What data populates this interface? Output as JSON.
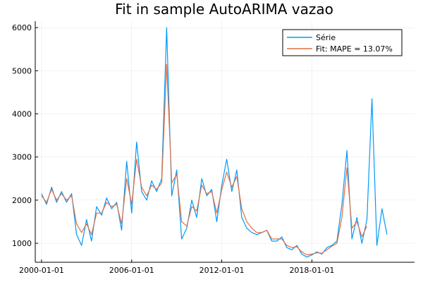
{
  "chart_data": {
    "type": "line",
    "title": "Fit in sample AutoARIMA vazao",
    "xlabel": "",
    "ylabel": "",
    "x_ticks": [
      "2000-01-01",
      "2006-01-01",
      "2012-01-01",
      "2018-01-01"
    ],
    "y_ticks": [
      1000,
      2000,
      3000,
      4000,
      5000,
      6000
    ],
    "ylim": [
      560,
      6150
    ],
    "xlim": [
      "1999-08-01",
      "2024-11-01"
    ],
    "grid": true,
    "legend_position": "top-right",
    "series": [
      {
        "name": "Série",
        "color": "#009AFA",
        "points": [
          [
            "2000-01-01",
            2150
          ],
          [
            "2000-05-01",
            1900
          ],
          [
            "2000-09-01",
            2300
          ],
          [
            "2001-01-01",
            1950
          ],
          [
            "2001-05-01",
            2200
          ],
          [
            "2001-09-01",
            1950
          ],
          [
            "2002-01-01",
            2150
          ],
          [
            "2002-05-01",
            1200
          ],
          [
            "2002-09-01",
            950
          ],
          [
            "2003-01-01",
            1550
          ],
          [
            "2003-05-01",
            1050
          ],
          [
            "2003-09-01",
            1850
          ],
          [
            "2004-01-01",
            1650
          ],
          [
            "2004-05-01",
            2050
          ],
          [
            "2004-09-01",
            1800
          ],
          [
            "2005-01-01",
            1950
          ],
          [
            "2005-05-01",
            1300
          ],
          [
            "2005-09-01",
            2900
          ],
          [
            "2006-01-01",
            1700
          ],
          [
            "2006-05-01",
            3350
          ],
          [
            "2006-09-01",
            2200
          ],
          [
            "2007-01-01",
            2000
          ],
          [
            "2007-05-01",
            2450
          ],
          [
            "2007-09-01",
            2200
          ],
          [
            "2008-01-01",
            2500
          ],
          [
            "2008-05-01",
            6000
          ],
          [
            "2008-09-01",
            2100
          ],
          [
            "2009-01-01",
            2700
          ],
          [
            "2009-05-01",
            1100
          ],
          [
            "2009-09-01",
            1350
          ],
          [
            "2010-01-01",
            2000
          ],
          [
            "2010-05-01",
            1600
          ],
          [
            "2010-09-01",
            2500
          ],
          [
            "2011-01-01",
            2100
          ],
          [
            "2011-05-01",
            2250
          ],
          [
            "2011-09-01",
            1500
          ],
          [
            "2012-01-01",
            2350
          ],
          [
            "2012-05-01",
            2950
          ],
          [
            "2012-09-01",
            2200
          ],
          [
            "2013-01-01",
            2700
          ],
          [
            "2013-05-01",
            1600
          ],
          [
            "2013-09-01",
            1350
          ],
          [
            "2014-01-01",
            1250
          ],
          [
            "2014-05-01",
            1200
          ],
          [
            "2014-09-01",
            1250
          ],
          [
            "2015-01-01",
            1300
          ],
          [
            "2015-05-01",
            1050
          ],
          [
            "2015-09-01",
            1050
          ],
          [
            "2016-01-01",
            1150
          ],
          [
            "2016-05-01",
            900
          ],
          [
            "2016-09-01",
            850
          ],
          [
            "2017-01-01",
            950
          ],
          [
            "2017-05-01",
            750
          ],
          [
            "2017-09-01",
            680
          ],
          [
            "2018-01-01",
            730
          ],
          [
            "2018-05-01",
            800
          ],
          [
            "2018-09-01",
            750
          ],
          [
            "2019-01-01",
            900
          ],
          [
            "2019-05-01",
            950
          ],
          [
            "2019-09-01",
            1050
          ],
          [
            "2020-01-01",
            1900
          ],
          [
            "2020-05-01",
            3150
          ],
          [
            "2020-09-01",
            1100
          ],
          [
            "2021-01-01",
            1600
          ],
          [
            "2021-05-01",
            1000
          ],
          [
            "2021-09-01",
            1550
          ],
          [
            "2022-01-01",
            4350
          ],
          [
            "2022-05-01",
            950
          ],
          [
            "2022-09-01",
            1800
          ],
          [
            "2023-01-01",
            1200
          ]
        ]
      },
      {
        "name": "Fit: MAPE = 13.07%",
        "color": "#E26F46",
        "points": [
          [
            "2000-01-01",
            2100
          ],
          [
            "2000-05-01",
            1950
          ],
          [
            "2000-09-01",
            2250
          ],
          [
            "2001-01-01",
            2000
          ],
          [
            "2001-05-01",
            2150
          ],
          [
            "2001-09-01",
            2000
          ],
          [
            "2002-01-01",
            2100
          ],
          [
            "2002-05-01",
            1450
          ],
          [
            "2002-09-01",
            1250
          ],
          [
            "2003-01-01",
            1450
          ],
          [
            "2003-05-01",
            1200
          ],
          [
            "2003-09-01",
            1700
          ],
          [
            "2004-01-01",
            1700
          ],
          [
            "2004-05-01",
            1950
          ],
          [
            "2004-09-01",
            1850
          ],
          [
            "2005-01-01",
            1900
          ],
          [
            "2005-05-01",
            1450
          ],
          [
            "2005-09-01",
            2500
          ],
          [
            "2006-01-01",
            1900
          ],
          [
            "2006-05-01",
            2950
          ],
          [
            "2006-09-01",
            2300
          ],
          [
            "2007-01-01",
            2100
          ],
          [
            "2007-05-01",
            2350
          ],
          [
            "2007-09-01",
            2250
          ],
          [
            "2008-01-01",
            2400
          ],
          [
            "2008-05-01",
            5150
          ],
          [
            "2008-09-01",
            2400
          ],
          [
            "2009-01-01",
            2600
          ],
          [
            "2009-05-01",
            1500
          ],
          [
            "2009-09-01",
            1400
          ],
          [
            "2010-01-01",
            1850
          ],
          [
            "2010-05-01",
            1750
          ],
          [
            "2010-09-01",
            2350
          ],
          [
            "2011-01-01",
            2150
          ],
          [
            "2011-05-01",
            2200
          ],
          [
            "2011-09-01",
            1700
          ],
          [
            "2012-01-01",
            2250
          ],
          [
            "2012-05-01",
            2650
          ],
          [
            "2012-09-01",
            2300
          ],
          [
            "2013-01-01",
            2550
          ],
          [
            "2013-05-01",
            1800
          ],
          [
            "2013-09-01",
            1500
          ],
          [
            "2014-01-01",
            1350
          ],
          [
            "2014-05-01",
            1250
          ],
          [
            "2014-09-01",
            1250
          ],
          [
            "2015-01-01",
            1300
          ],
          [
            "2015-05-01",
            1100
          ],
          [
            "2015-09-01",
            1100
          ],
          [
            "2016-01-01",
            1100
          ],
          [
            "2016-05-01",
            950
          ],
          [
            "2016-09-01",
            900
          ],
          [
            "2017-01-01",
            920
          ],
          [
            "2017-05-01",
            800
          ],
          [
            "2017-09-01",
            730
          ],
          [
            "2018-01-01",
            750
          ],
          [
            "2018-05-01",
            780
          ],
          [
            "2018-09-01",
            770
          ],
          [
            "2019-01-01",
            850
          ],
          [
            "2019-05-01",
            930
          ],
          [
            "2019-09-01",
            1000
          ],
          [
            "2020-01-01",
            1600
          ],
          [
            "2020-05-01",
            2750
          ],
          [
            "2020-09-01",
            1350
          ],
          [
            "2021-01-01",
            1500
          ],
          [
            "2021-05-01",
            1150
          ],
          [
            "2021-09-01",
            1400
          ]
        ]
      }
    ]
  }
}
